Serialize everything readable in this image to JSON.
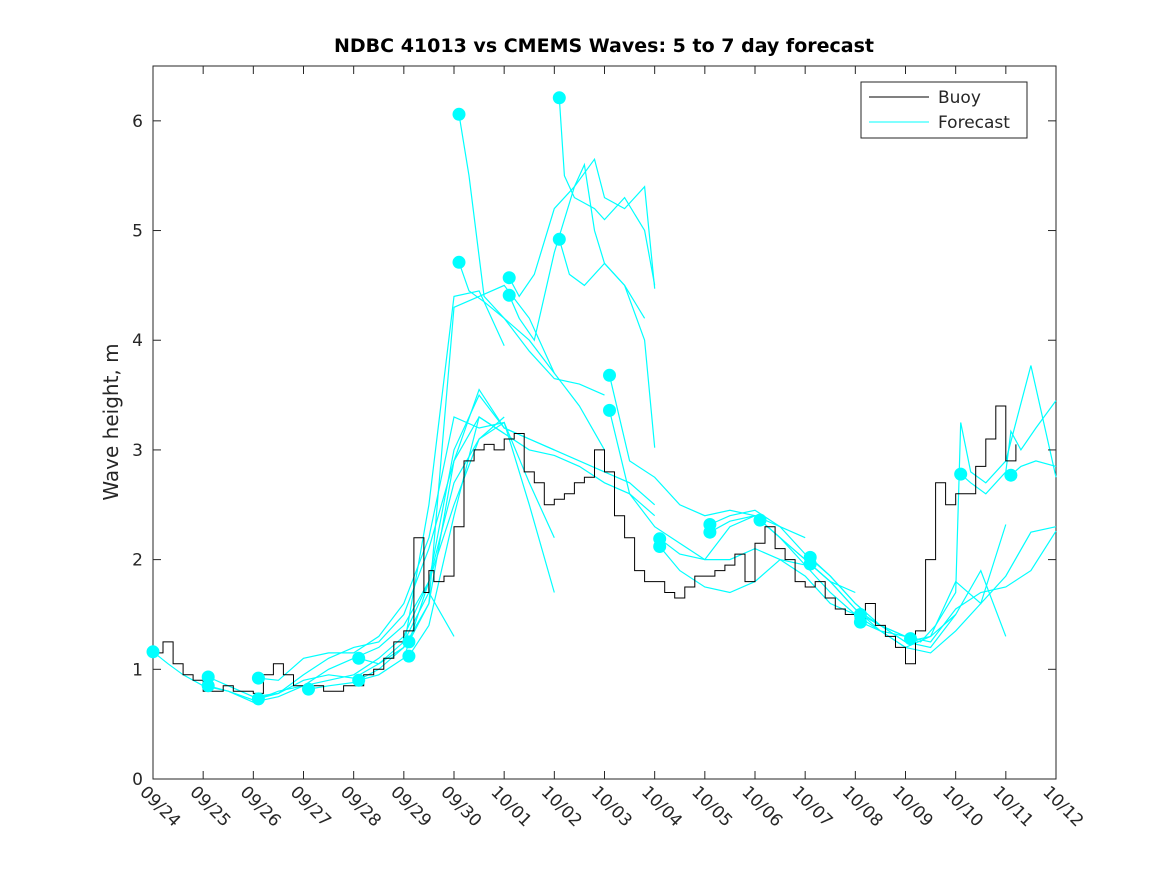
{
  "chart_data": {
    "type": "line",
    "title": "NDBC 41013 vs CMEMS Waves: 5 to 7 day forecast",
    "xlabel": "",
    "ylabel": "Wave height, m",
    "xlim": [
      0,
      18
    ],
    "ylim": [
      0,
      6.5
    ],
    "grid": false,
    "legend_placement": "top-right",
    "x_ticks": [
      0,
      1,
      2,
      3,
      4,
      5,
      6,
      7,
      8,
      9,
      10,
      11,
      12,
      13,
      14,
      15,
      16,
      17,
      18
    ],
    "x_tick_labels": [
      "09/24",
      "09/25",
      "09/26",
      "09/27",
      "09/28",
      "09/29",
      "09/30",
      "10/01",
      "10/02",
      "10/03",
      "10/04",
      "10/05",
      "10/06",
      "10/07",
      "10/08",
      "10/09",
      "10/10",
      "10/11",
      "10/12"
    ],
    "y_ticks": [
      0,
      1,
      2,
      3,
      4,
      5,
      6
    ],
    "y_tick_labels": [
      "0",
      "1",
      "2",
      "3",
      "4",
      "5",
      "6"
    ],
    "colors": {
      "buoy": "#000000",
      "forecast": "#00ffff"
    },
    "legend": [
      {
        "label": "Buoy",
        "color": "#000000"
      },
      {
        "label": "Forecast",
        "color": "#00ffff"
      }
    ],
    "series": [
      {
        "name": "Buoy",
        "x": [
          0,
          0.2,
          0.4,
          0.6,
          0.8,
          1.0,
          1.2,
          1.4,
          1.6,
          1.8,
          2.0,
          2.2,
          2.4,
          2.6,
          2.8,
          3.0,
          3.2,
          3.4,
          3.6,
          3.8,
          4.0,
          4.2,
          4.4,
          4.6,
          4.8,
          5.0,
          5.2,
          5.4,
          5.5,
          5.6,
          5.8,
          6.0,
          6.2,
          6.4,
          6.6,
          6.8,
          7.0,
          7.2,
          7.4,
          7.6,
          7.8,
          8.0,
          8.2,
          8.4,
          8.6,
          8.8,
          9.0,
          9.2,
          9.4,
          9.6,
          9.8,
          10.0,
          10.2,
          10.4,
          10.6,
          10.8,
          11.0,
          11.2,
          11.4,
          11.6,
          11.8,
          12.0,
          12.2,
          12.4,
          12.6,
          12.8,
          13.0,
          13.2,
          13.4,
          13.6,
          13.8,
          14.0,
          14.2,
          14.4,
          14.6,
          14.8,
          15.0,
          15.2,
          15.4,
          15.6,
          15.8,
          16.0,
          16.2,
          16.4,
          16.6,
          16.8,
          17.0,
          17.2
        ],
        "values": [
          1.15,
          1.25,
          1.05,
          0.95,
          0.9,
          0.8,
          0.8,
          0.85,
          0.8,
          0.8,
          0.78,
          0.95,
          1.05,
          0.95,
          0.85,
          0.82,
          0.85,
          0.8,
          0.8,
          0.85,
          0.85,
          0.95,
          1.0,
          1.1,
          1.25,
          1.35,
          2.2,
          1.7,
          1.9,
          1.8,
          1.85,
          2.3,
          2.9,
          3.0,
          3.05,
          3.0,
          3.1,
          3.15,
          2.8,
          2.7,
          2.5,
          2.55,
          2.6,
          2.7,
          2.75,
          3.0,
          2.8,
          2.4,
          2.2,
          1.9,
          1.8,
          1.8,
          1.7,
          1.65,
          1.75,
          1.85,
          1.85,
          1.9,
          1.95,
          2.05,
          1.8,
          2.15,
          2.3,
          2.1,
          2.0,
          1.8,
          1.75,
          1.8,
          1.65,
          1.55,
          1.5,
          1.45,
          1.6,
          1.4,
          1.3,
          1.2,
          1.05,
          1.35,
          2.0,
          2.7,
          2.5,
          2.6,
          2.6,
          2.85,
          3.1,
          3.4,
          2.9,
          3.05
        ]
      },
      {
        "name": "Forecast",
        "runs": [
          {
            "x": [
              0,
              0.3,
              0.6,
              1.0,
              1.5,
              2.0,
              2.5,
              3.0,
              3.5,
              4.0,
              4.5,
              5.0,
              5.5,
              6.0
            ],
            "values": [
              1.16,
              1.05,
              0.95,
              0.85,
              0.8,
              0.72,
              0.78,
              0.9,
              0.95,
              0.92,
              1.05,
              1.25,
              1.7,
              1.3
            ]
          },
          {
            "x": [
              1.1,
              1.5,
              2.0,
              2.5,
              3.0,
              3.5,
              4.0,
              4.5,
              5.0,
              5.5,
              6.0,
              6.5,
              7.0
            ],
            "values": [
              0.93,
              0.85,
              0.75,
              0.78,
              0.95,
              1.1,
              1.2,
              1.25,
              1.5,
              2.1,
              2.9,
              3.3,
              3.15
            ]
          },
          {
            "x": [
              1.1,
              1.5,
              2.0,
              2.5,
              3.0,
              3.5,
              4.0,
              4.5,
              5.0,
              5.5,
              6.0,
              6.5,
              7.0
            ],
            "values": [
              0.85,
              0.8,
              0.7,
              0.75,
              0.85,
              1.0,
              1.1,
              1.2,
              1.4,
              1.8,
              2.5,
              3.1,
              3.3
            ]
          },
          {
            "x": [
              2.1,
              2.5,
              3.0,
              3.5,
              4.0,
              4.5,
              5.0,
              5.5,
              6.0,
              6.5,
              7.0,
              7.5,
              8.0
            ],
            "values": [
              0.92,
              0.9,
              1.1,
              1.15,
              1.15,
              1.3,
              1.6,
              2.2,
              3.3,
              3.2,
              3.25,
              2.5,
              1.7
            ]
          },
          {
            "x": [
              2.1,
              2.5,
              3.0,
              3.5,
              4.0,
              4.5,
              5.0,
              5.5,
              6.0,
              6.5,
              7.0,
              7.5,
              8.0
            ],
            "values": [
              0.73,
              0.8,
              0.85,
              0.9,
              0.95,
              1.1,
              1.3,
              1.8,
              2.7,
              3.1,
              3.25,
              2.7,
              2.2
            ]
          },
          {
            "x": [
              3.1,
              3.5,
              4.0,
              4.5,
              5.0,
              5.5,
              6.0,
              6.5,
              7.0
            ],
            "values": [
              0.82,
              0.85,
              0.88,
              1.0,
              1.2,
              2.5,
              4.4,
              4.45,
              3.95
            ]
          },
          {
            "x": [
              4.1,
              4.5,
              5.0,
              5.5,
              6.0,
              6.5,
              7.0,
              7.5,
              8.0
            ],
            "values": [
              1.1,
              1.05,
              1.2,
              1.6,
              4.3,
              4.4,
              4.5,
              4.2,
              3.7
            ]
          },
          {
            "x": [
              4.1,
              4.5,
              5.0,
              5.5,
              6.0,
              6.5,
              7.0,
              7.5,
              8.0
            ],
            "values": [
              0.9,
              0.95,
              1.1,
              1.8,
              3.0,
              3.5,
              3.2,
              3.1,
              3.0
            ]
          },
          {
            "x": [
              5.1,
              5.5,
              6.0,
              6.5,
              7.0,
              7.5,
              8.0,
              8.5,
              9.0,
              9.5,
              10.0
            ],
            "values": [
              1.25,
              1.6,
              2.9,
              3.55,
              3.2,
              3.1,
              3.0,
              2.9,
              2.8,
              2.7,
              2.5
            ]
          },
          {
            "x": [
              5.1,
              5.5,
              6.0,
              6.5,
              7.0,
              7.5,
              8.0,
              8.5,
              9.0,
              9.5,
              10.0
            ],
            "values": [
              1.12,
              1.4,
              2.4,
              3.3,
              3.15,
              3.0,
              2.95,
              2.85,
              2.7,
              2.6,
              2.4
            ]
          },
          {
            "x": [
              6.1,
              6.3,
              6.6,
              7.0,
              7.5,
              8.0,
              8.5,
              9.0
            ],
            "values": [
              6.06,
              5.5,
              4.4,
              4.2,
              4.0,
              3.7,
              3.4,
              3.0
            ]
          },
          {
            "x": [
              6.1,
              6.3,
              6.6,
              7.0,
              7.5,
              8.0,
              8.5,
              9.0
            ],
            "values": [
              4.71,
              4.45,
              4.35,
              4.2,
              3.9,
              3.65,
              3.6,
              3.5
            ]
          },
          {
            "x": [
              7.1,
              7.3,
              7.6,
              8.0,
              8.4,
              8.8,
              9.0,
              9.4,
              9.8,
              10.0
            ],
            "values": [
              4.57,
              4.4,
              4.6,
              5.2,
              5.4,
              5.65,
              5.3,
              5.2,
              5.4,
              4.47
            ]
          },
          {
            "x": [
              7.1,
              7.3,
              7.6,
              8.0,
              8.4,
              8.6,
              8.8,
              9.0,
              9.4,
              9.8
            ],
            "values": [
              4.41,
              4.2,
              4.0,
              4.8,
              5.4,
              5.6,
              5.0,
              4.7,
              4.5,
              4.2
            ]
          },
          {
            "x": [
              8.1,
              8.2,
              8.4,
              8.8,
              9.0,
              9.4,
              9.8,
              10.0
            ],
            "values": [
              6.21,
              5.5,
              5.3,
              5.2,
              5.1,
              5.3,
              5.0,
              4.5
            ]
          },
          {
            "x": [
              8.1,
              8.3,
              8.6,
              9.0,
              9.4,
              9.8,
              10.0
            ],
            "values": [
              4.92,
              4.6,
              4.5,
              4.7,
              4.5,
              4.0,
              3.02
            ]
          },
          {
            "x": [
              9.1,
              9.5,
              10.0,
              10.5,
              11.0,
              11.5,
              12.0,
              12.5,
              13.0
            ],
            "values": [
              3.68,
              2.9,
              2.75,
              2.5,
              2.4,
              2.45,
              2.4,
              2.3,
              2.2
            ]
          },
          {
            "x": [
              9.1,
              9.5,
              10.0,
              10.5,
              11.0,
              11.5,
              12.0,
              12.5,
              13.0
            ],
            "values": [
              3.36,
              2.6,
              2.3,
              2.15,
              2.0,
              2.0,
              2.1,
              2.0,
              1.95
            ]
          },
          {
            "x": [
              10.1,
              10.5,
              11.0,
              11.5,
              12.0,
              12.5,
              13.0,
              13.5,
              14.0
            ],
            "values": [
              2.19,
              2.05,
              2.0,
              2.3,
              2.4,
              2.2,
              2.0,
              1.8,
              1.7
            ]
          },
          {
            "x": [
              10.1,
              10.5,
              11.0,
              11.5,
              12.0,
              12.5,
              13.0,
              13.5,
              14.0
            ],
            "values": [
              2.12,
              1.9,
              1.75,
              1.7,
              1.8,
              2.0,
              1.85,
              1.6,
              1.5
            ]
          },
          {
            "x": [
              11.1,
              11.5,
              12.0,
              12.5,
              13.0,
              13.5,
              14.0,
              14.5,
              15.0
            ],
            "values": [
              2.32,
              2.4,
              2.45,
              2.3,
              2.05,
              1.85,
              1.6,
              1.4,
              1.3
            ]
          },
          {
            "x": [
              11.1,
              11.5,
              12.0,
              12.5,
              13.0,
              13.5,
              14.0,
              14.5,
              15.0
            ],
            "values": [
              2.25,
              2.35,
              2.4,
              2.2,
              1.95,
              1.7,
              1.5,
              1.35,
              1.3
            ]
          },
          {
            "x": [
              12.1,
              12.5,
              13.0,
              13.5,
              14.0,
              14.5,
              15.0,
              15.5,
              16.0
            ],
            "values": [
              2.36,
              2.2,
              2.0,
              1.8,
              1.55,
              1.4,
              1.25,
              1.3,
              1.5
            ]
          },
          {
            "x": [
              13.1,
              13.5,
              14.0,
              14.5,
              15.0,
              15.5,
              16.0,
              16.5,
              17.0
            ],
            "values": [
              2.02,
              1.85,
              1.6,
              1.4,
              1.25,
              1.2,
              1.5,
              1.9,
              1.3
            ]
          },
          {
            "x": [
              13.1,
              13.5,
              14.0,
              14.5,
              15.0,
              15.5,
              16.0,
              16.5,
              17.0
            ],
            "values": [
              1.96,
              1.8,
              1.55,
              1.35,
              1.2,
              1.3,
              1.8,
              1.6,
              2.32
            ]
          },
          {
            "x": [
              14.1,
              14.5,
              15.0,
              15.5,
              16.0,
              16.5,
              17.0,
              17.5,
              18.0
            ],
            "values": [
              1.5,
              1.4,
              1.3,
              1.25,
              1.55,
              1.7,
              1.75,
              1.9,
              2.26
            ]
          },
          {
            "x": [
              14.1,
              14.5,
              15.0,
              15.5,
              16.0,
              16.5,
              17.0,
              17.5,
              18.0
            ],
            "values": [
              1.43,
              1.35,
              1.2,
              1.15,
              1.35,
              1.6,
              1.85,
              2.25,
              2.3
            ]
          },
          {
            "x": [
              15.1,
              15.3,
              15.6,
              16.0,
              16.1,
              16.3,
              16.6,
              17.0,
              17.5,
              18.0
            ],
            "values": [
              1.28,
              1.25,
              1.4,
              1.7,
              3.25,
              2.8,
              2.7,
              2.9,
              3.77,
              2.75
            ]
          },
          {
            "x": [
              16.1,
              16.3,
              16.6,
              17.0,
              17.1,
              17.3,
              17.6,
              18.0
            ],
            "values": [
              2.78,
              2.7,
              2.6,
              2.8,
              3.17,
              3.0,
              3.2,
              3.45
            ]
          },
          {
            "x": [
              17.1,
              17.3,
              17.6,
              18.0
            ],
            "values": [
              2.77,
              2.85,
              2.9,
              2.85
            ]
          }
        ]
      }
    ]
  }
}
